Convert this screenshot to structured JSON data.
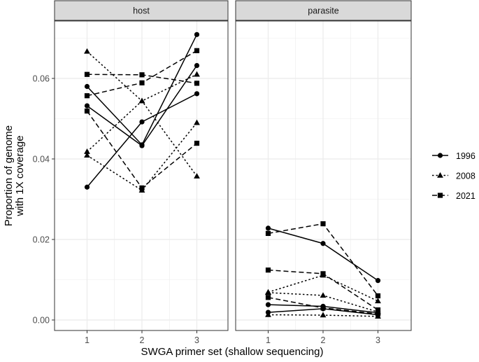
{
  "chart_data": {
    "type": "line",
    "xlabel": "SWGA primer set (shallow sequencing)",
    "ylabel_lines": [
      "Proportion of genome",
      "with 1X coverage"
    ],
    "x": [
      1,
      2,
      3
    ],
    "x_tick_labels": [
      "1",
      "2",
      "3"
    ],
    "ylim": [
      0,
      0.074
    ],
    "y_ticks": [
      0.0,
      0.02,
      0.04,
      0.06
    ],
    "y_tick_labels": [
      "0.00",
      "0.02",
      "0.04",
      "0.06"
    ],
    "grid": true,
    "legend_position": "right",
    "legend": [
      {
        "label": "1996",
        "linetype": "solid",
        "shape": "circle"
      },
      {
        "label": "2008",
        "linetype": "dotted",
        "shape": "triangle"
      },
      {
        "label": "2021",
        "linetype": "dashed",
        "shape": "square"
      }
    ],
    "facets": [
      {
        "label": "host",
        "series": [
          {
            "group": "1996",
            "values": [
              0.058,
              0.0435,
              0.0709
            ]
          },
          {
            "group": "1996",
            "values": [
              0.0532,
              0.0433,
              0.0632
            ]
          },
          {
            "group": "1996",
            "values": [
              0.033,
              0.0492,
              0.0562
            ]
          },
          {
            "group": "2008",
            "values": [
              0.0667,
              0.0544,
              0.0357
            ]
          },
          {
            "group": "2008",
            "values": [
              0.0418,
              0.0544,
              0.061
            ]
          },
          {
            "group": "2008",
            "values": [
              0.0409,
              0.0322,
              0.049
            ]
          },
          {
            "group": "2021",
            "values": [
              0.061,
              0.0609,
              0.0588
            ]
          },
          {
            "group": "2021",
            "values": [
              0.0557,
              0.0589,
              0.0669
            ]
          },
          {
            "group": "2021",
            "values": [
              0.0519,
              0.0328,
              0.0439
            ]
          }
        ]
      },
      {
        "label": "parasite",
        "series": [
          {
            "group": "1996",
            "values": [
              0.0228,
              0.019,
              0.0098
            ]
          },
          {
            "group": "1996",
            "values": [
              0.0038,
              0.0034,
              0.0018
            ]
          },
          {
            "group": "1996",
            "values": [
              0.0019,
              0.0028,
              0.0013
            ]
          },
          {
            "group": "2008",
            "values": [
              0.0069,
              0.0111,
              0.0047
            ]
          },
          {
            "group": "2008",
            "values": [
              0.0068,
              0.0061,
              0.002
            ]
          },
          {
            "group": "2008",
            "values": [
              0.0013,
              0.0012,
              0.0009
            ]
          },
          {
            "group": "2021",
            "values": [
              0.0215,
              0.0239,
              0.006
            ]
          },
          {
            "group": "2021",
            "values": [
              0.0124,
              0.0115,
              0.0025
            ]
          },
          {
            "group": "2021",
            "values": [
              0.0056,
              0.003,
              0.0015
            ]
          }
        ]
      }
    ],
    "colors": {
      "line": "#000000",
      "strip_fill": "#d9d9d9",
      "grid": "#ebebeb",
      "border": "#333333"
    }
  }
}
